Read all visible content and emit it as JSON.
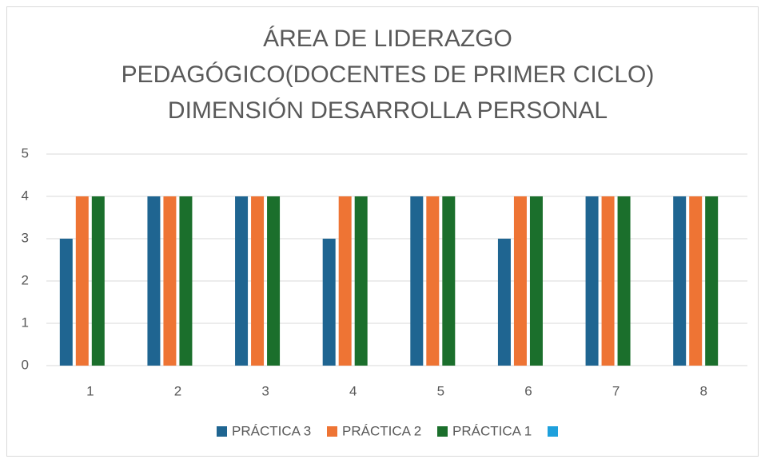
{
  "chart_data": {
    "type": "bar",
    "title": [
      "ÁREA DE LIDERAZGO",
      "PEDAGÓGICO(DOCENTES DE PRIMER CICLO)",
      "DIMENSIÓN DESARROLLA PERSONAL"
    ],
    "categories": [
      "1",
      "2",
      "3",
      "4",
      "5",
      "6",
      "7",
      "8"
    ],
    "series": [
      {
        "name": "PRÁCTICA 3",
        "color": "#1f6591",
        "values": [
          3,
          4,
          4,
          3,
          4,
          3,
          4,
          4
        ]
      },
      {
        "name": "PRÁCTICA 2",
        "color": "#ee7434",
        "values": [
          4,
          4,
          4,
          4,
          4,
          4,
          4,
          4
        ]
      },
      {
        "name": "PRÁCTICA 1",
        "color": "#1b6f2c",
        "values": [
          4,
          4,
          4,
          4,
          4,
          4,
          4,
          4
        ]
      },
      {
        "name": null,
        "color": "#1ea0dc",
        "values": [
          null,
          null,
          null,
          null,
          null,
          null,
          null,
          null
        ]
      }
    ],
    "ylim": [
      0,
      5
    ],
    "yticks": [
      0,
      1,
      2,
      3,
      4,
      5
    ],
    "grid": true,
    "legend": "bottom"
  }
}
